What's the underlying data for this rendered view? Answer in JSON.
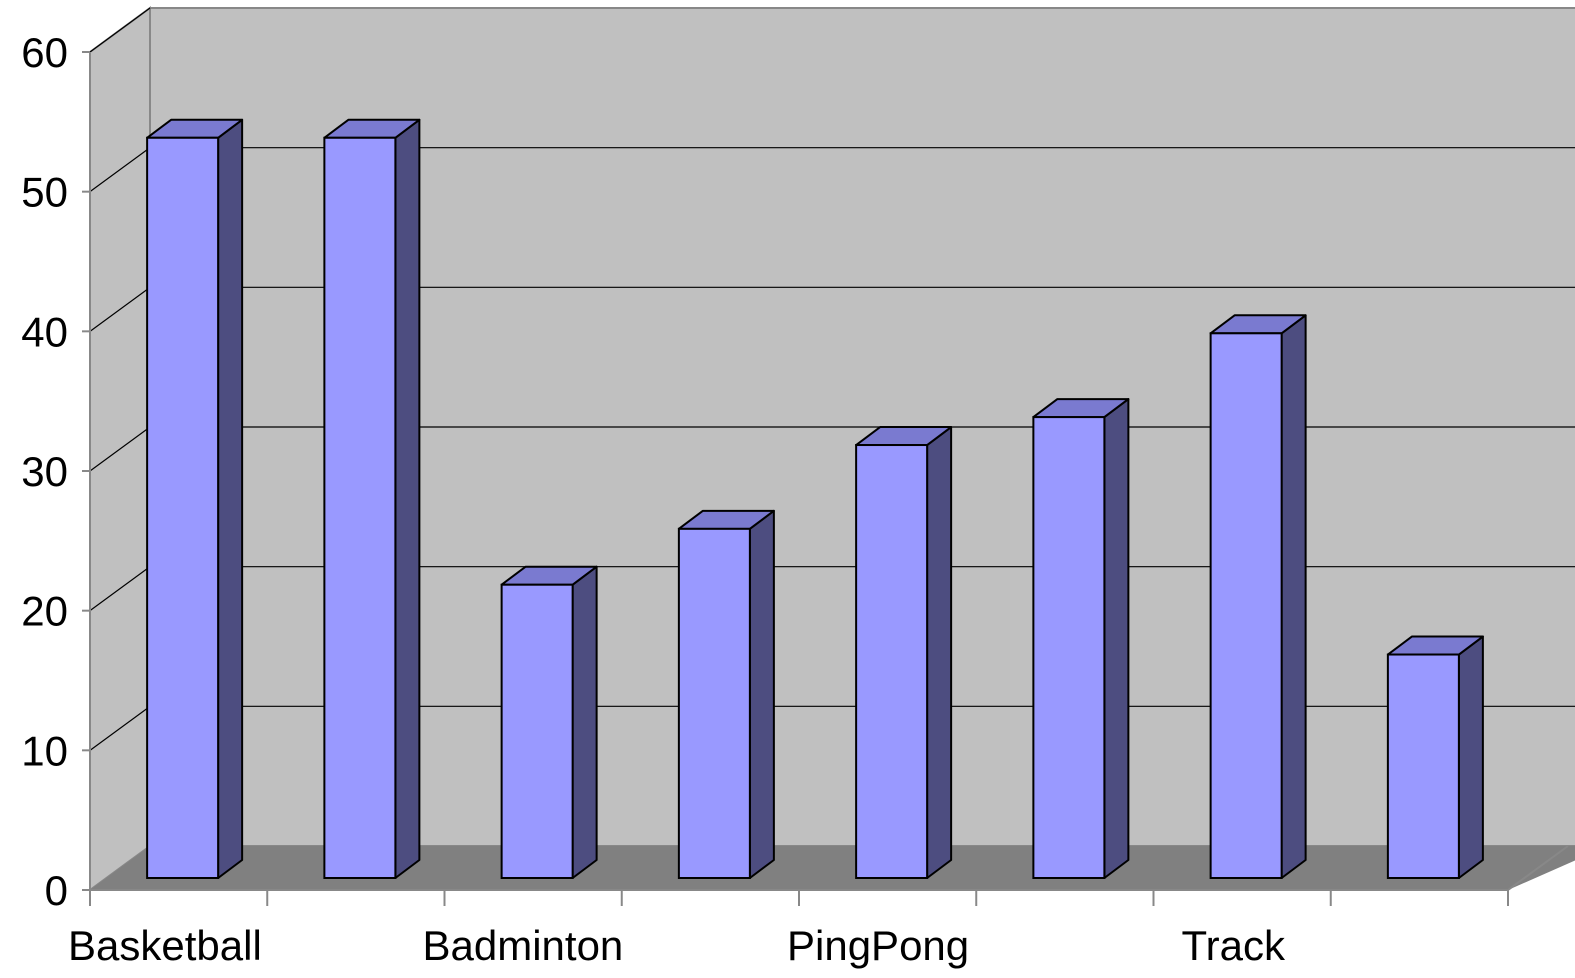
{
  "chart_data": {
    "type": "bar",
    "style": "3d-column",
    "title": "",
    "xlabel": "",
    "ylabel": "",
    "ylim": [
      0,
      60
    ],
    "yticks": [
      0,
      10,
      20,
      30,
      40,
      50,
      60
    ],
    "category_labels_shown": [
      "Basketball",
      "Badminton",
      "PingPong",
      "Track"
    ],
    "values": [
      53,
      53,
      21,
      25,
      31,
      33,
      39,
      16
    ],
    "grid": true,
    "legend": "none",
    "colors": {
      "bar_front": "#9999ff",
      "bar_side": "#4d4d80",
      "bar_top": "#7a7ad0",
      "back_wall": "#c0c0c0",
      "side_wall": "#c0c0c0",
      "floor": "#808080",
      "gridline": "#000000",
      "axis": "#888888"
    }
  }
}
